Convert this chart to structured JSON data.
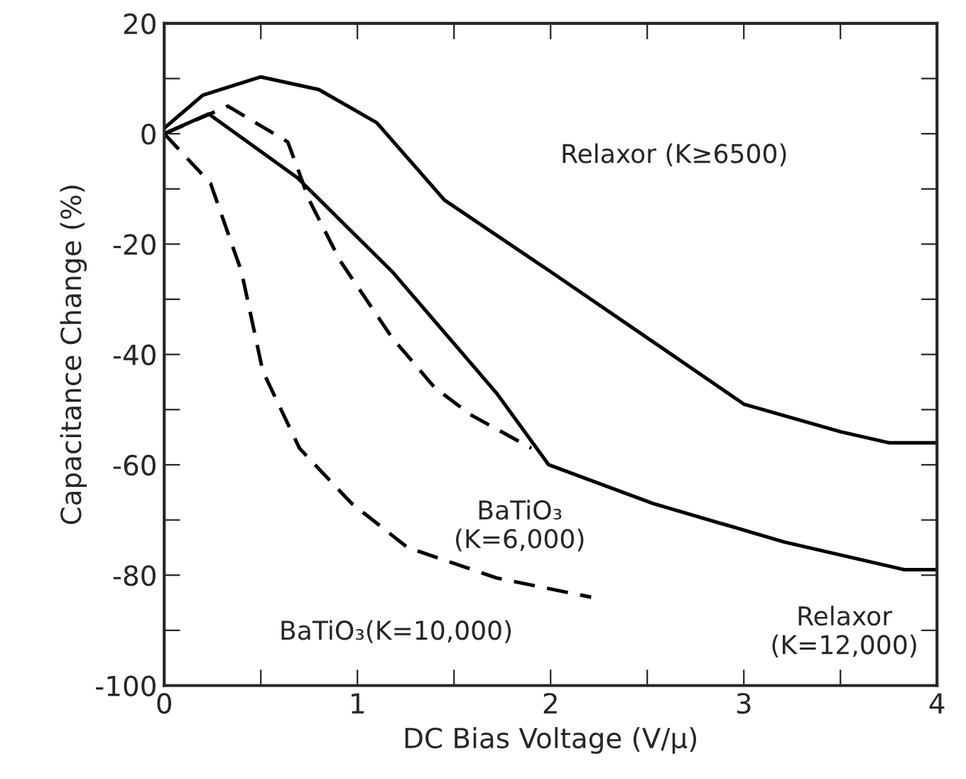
{
  "chart_data": {
    "type": "line",
    "xlabel": "DC Bias Voltage (V/μ)",
    "ylabel": "Capacitance Change (%)",
    "xlim": [
      0,
      4
    ],
    "ylim": [
      -100,
      20
    ],
    "xticks": [
      0,
      {
        "value": 0.5,
        "label": null
      },
      1,
      {
        "value": 1.5,
        "label": null
      },
      2,
      {
        "value": 2.5,
        "label": null
      },
      3,
      {
        "value": 3.5,
        "label": null
      },
      4
    ],
    "yticks": [
      -100,
      {
        "value": -90,
        "label": null
      },
      -80,
      {
        "value": -70,
        "label": null
      },
      -60,
      {
        "value": -50,
        "label": null
      },
      -40,
      {
        "value": -30,
        "label": null
      },
      -20,
      {
        "value": -10,
        "label": null
      },
      0,
      {
        "value": 10,
        "label": null
      },
      20
    ],
    "grid": false,
    "marker": "none",
    "series": [
      {
        "color": "#000000",
        "line_style": "solid",
        "x": [
          0,
          0.2,
          0.5,
          0.8,
          1.1,
          1.45,
          2.0,
          2.53,
          3.0,
          3.5,
          3.75,
          4.0
        ],
        "values": [
          1,
          7,
          10.3,
          8,
          2,
          -12,
          -25,
          -37.7,
          -49,
          -54,
          -56,
          -56
        ]
      },
      {
        "color": "#000000",
        "line_style": "solid",
        "x": [
          0,
          0.23,
          0.69,
          1.18,
          1.72,
          1.99,
          2.53,
          3.21,
          3.83,
          4.0
        ],
        "values": [
          0,
          3.6,
          -8,
          -25,
          -47,
          -60,
          -67,
          -74,
          -79,
          -79
        ]
      },
      {
        "color": "#000000",
        "line_style": "dashed",
        "x": [
          0,
          0.33,
          0.64,
          0.75,
          0.91,
          1.18,
          1.4,
          1.59,
          1.9
        ],
        "values": [
          0,
          5,
          -1.5,
          -12,
          -23,
          -37,
          -46,
          -51,
          -57
        ]
      },
      {
        "color": "#000000",
        "line_style": "dashed",
        "x": [
          0,
          0.24,
          0.4,
          0.51,
          0.7,
          0.97,
          1.26,
          1.72,
          2.21
        ],
        "values": [
          0,
          -9,
          -25,
          -43,
          -57,
          -67,
          -75,
          -80.5,
          -84
        ]
      }
    ],
    "annotations": [
      "Relaxor (K≥6500)",
      "BaTiO₃\n(K=6,000)",
      "BaTiO₃(K=10,000)",
      "Relaxor\n(K=12,000)"
    ]
  }
}
